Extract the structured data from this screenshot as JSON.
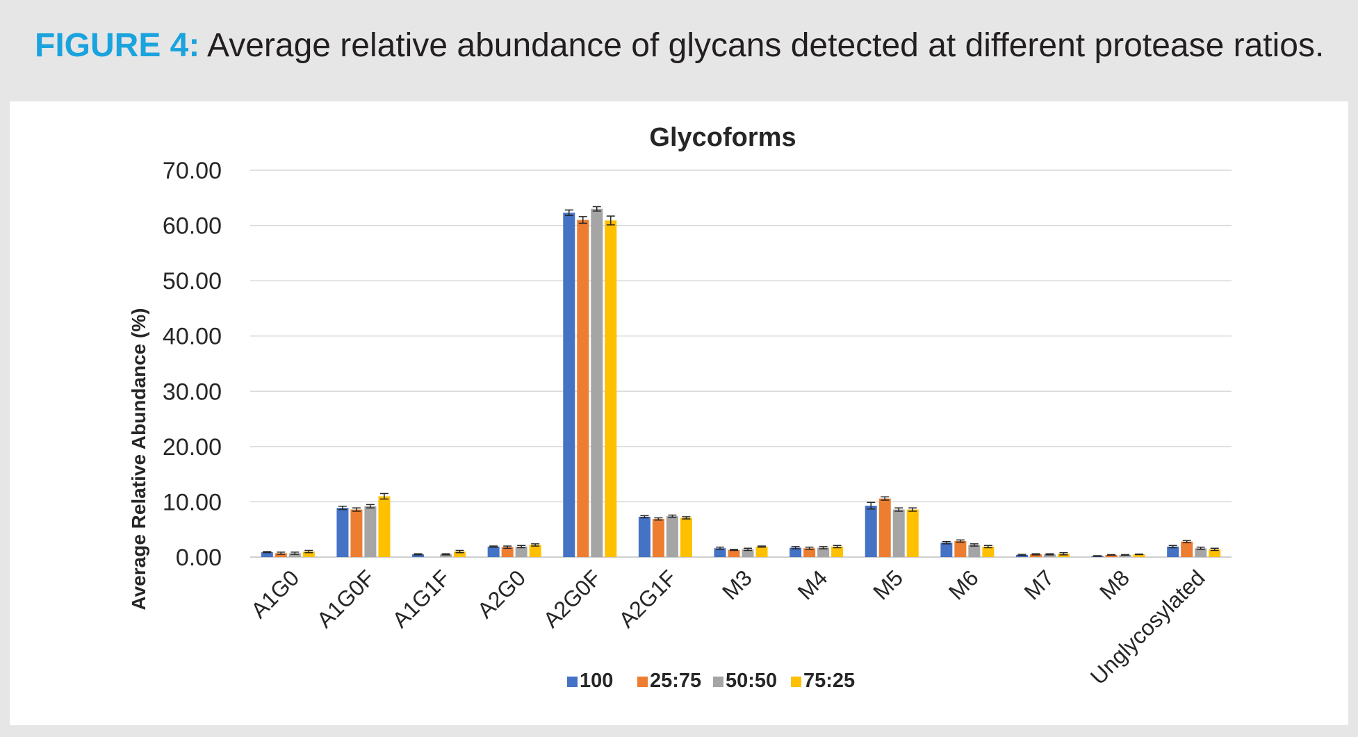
{
  "caption": {
    "label": "FIGURE 4:",
    "text": "Average relative abundance of glycans detected at different protease ratios."
  },
  "chart_data": {
    "type": "bar",
    "title": "Glycoforms",
    "xlabel": "",
    "ylabel": "Average Relative Abundance (%)",
    "ylim": [
      0,
      70
    ],
    "yticks": [
      "0.00",
      "10.00",
      "20.00",
      "30.00",
      "40.00",
      "50.00",
      "60.00",
      "70.00"
    ],
    "grid": true,
    "legend_position": "bottom",
    "categories": [
      "A1G0",
      "A1G0F",
      "A1G1F",
      "A2G0",
      "A2G0F",
      "A2G1F",
      "M3",
      "M4",
      "M5",
      "M6",
      "M7",
      "M8",
      "Unglycosylated"
    ],
    "series": [
      {
        "name": "100",
        "color": "#4472c4",
        "values": [
          0.9,
          8.9,
          0.5,
          1.9,
          62.3,
          7.3,
          1.6,
          1.7,
          9.3,
          2.6,
          0.4,
          0.2,
          1.9
        ],
        "errors": [
          0.1,
          0.3,
          0.1,
          0.1,
          0.5,
          0.2,
          0.2,
          0.2,
          0.6,
          0.2,
          0.1,
          0.05,
          0.2
        ]
      },
      {
        "name": "25:75",
        "color": "#ed7d31",
        "values": [
          0.7,
          8.6,
          0.0,
          1.8,
          61.0,
          6.9,
          1.3,
          1.6,
          10.6,
          2.9,
          0.5,
          0.4,
          2.8
        ],
        "errors": [
          0.2,
          0.3,
          0.0,
          0.2,
          0.6,
          0.2,
          0.1,
          0.2,
          0.3,
          0.2,
          0.1,
          0.05,
          0.2
        ]
      },
      {
        "name": "50:50",
        "color": "#a5a5a5",
        "values": [
          0.7,
          9.2,
          0.5,
          1.9,
          63.0,
          7.4,
          1.4,
          1.7,
          8.6,
          2.2,
          0.5,
          0.4,
          1.6
        ],
        "errors": [
          0.2,
          0.3,
          0.1,
          0.2,
          0.4,
          0.2,
          0.2,
          0.2,
          0.3,
          0.2,
          0.1,
          0.05,
          0.2
        ]
      },
      {
        "name": "75:25",
        "color": "#ffc000",
        "values": [
          1.0,
          11.0,
          1.0,
          2.2,
          60.9,
          7.1,
          1.9,
          1.9,
          8.6,
          1.9,
          0.6,
          0.5,
          1.4
        ],
        "errors": [
          0.2,
          0.5,
          0.2,
          0.2,
          0.8,
          0.2,
          0.1,
          0.2,
          0.3,
          0.2,
          0.2,
          0.05,
          0.2
        ]
      }
    ]
  }
}
